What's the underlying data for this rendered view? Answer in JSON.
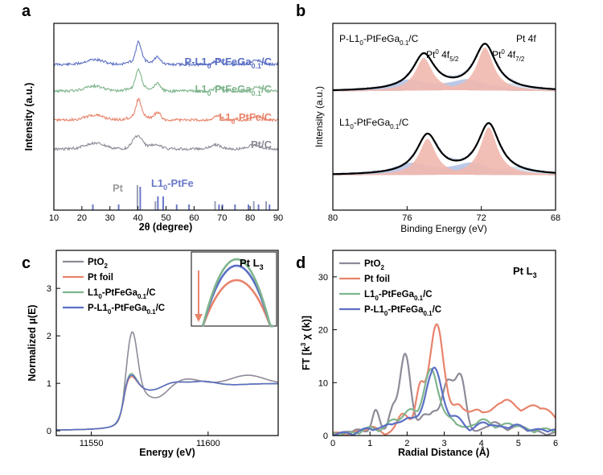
{
  "colors": {
    "blue": "#5b6fc4",
    "green": "#7fb58e",
    "red": "#e8836b",
    "gray": "#8f8a98",
    "xps_red_fill": "#f1b8ae",
    "xps_blue_fill": "#b7c4e4",
    "xps_lightblue_fill": "#cfe1f2"
  },
  "chart_data": [
    {
      "panel": "a",
      "type": "line",
      "xlabel": "2θ (degree)",
      "ylabel": "Intensity (a.u.)",
      "xlim": [
        10,
        90
      ],
      "xticks": [
        10,
        20,
        30,
        40,
        50,
        60,
        70,
        80,
        90
      ],
      "series": [
        {
          "name": "P-L1",
          "name_sub": "0",
          "name_mid": "-PtFeGa",
          "name_sub2": "0.1",
          "name_end": "/C",
          "color": "#5b6fc4"
        },
        {
          "name": "L1",
          "name_sub": "0",
          "name_mid": "-PtFeGa",
          "name_sub2": "0.1",
          "name_end": "/C",
          "color": "#7fb58e"
        },
        {
          "name": "L1",
          "name_sub": "0",
          "name_mid": "-PtFe/C",
          "name_sub2": "",
          "name_end": "",
          "color": "#e8836b"
        },
        {
          "name": "Pt/C",
          "name_sub": "",
          "name_mid": "",
          "name_sub2": "",
          "name_end": "",
          "color": "#8f8a98"
        }
      ],
      "peaks_deg": [
        24.5,
        40.2,
        47.0,
        68.5,
        82.5
      ],
      "reference": {
        "pt_label": "Pt",
        "pt_lines": [
          39.8,
          46.2,
          67.5,
          81.3,
          85.7
        ],
        "pt_color": "#9aa0b4",
        "pt_label_color": "#9b9b9b",
        "ptfe_label_a": "L1",
        "ptfe_label_sub": "0",
        "ptfe_label_b": "-PtFe",
        "ptfe_lines": [
          23.9,
          33.1,
          40.8,
          47.1,
          49.0,
          53.8,
          58.2,
          68.9,
          70.1,
          74.6,
          79.4,
          83.0,
          86.9
        ],
        "ptfe_color": "#6a78c8"
      }
    },
    {
      "panel": "b",
      "type": "line",
      "xlabel": "Binding Energy (eV)",
      "ylabel": "Intensity (a.u.)",
      "xlim": [
        80,
        68
      ],
      "xticks": [
        80,
        76,
        72,
        68
      ],
      "inner_title": "Pt 4f",
      "peak_labels": [
        {
          "a": "Pt",
          "sup": "0",
          "b": " 4f",
          "sub": "5/2"
        },
        {
          "a": "Pt",
          "sup": "0",
          "b": " 4f",
          "sub": "7/2"
        }
      ],
      "series": [
        {
          "label_a": "P-L1",
          "label_sub": "0",
          "label_b": "-PtFeGa",
          "label_sub2": "0.1",
          "label_c": "/C",
          "peaks_ev": [
            75.1,
            71.8
          ]
        },
        {
          "label_a": "L1",
          "label_sub": "0",
          "label_b": "-PtFeGa",
          "label_sub2": "0.1",
          "label_c": "/C",
          "peaks_ev": [
            74.9,
            71.6
          ]
        }
      ]
    },
    {
      "panel": "c",
      "type": "line",
      "xlabel": "Energy (eV)",
      "ylabel": "Normalized μ(E)",
      "xlim": [
        11535,
        11630
      ],
      "ylim": [
        -0.1,
        3.8
      ],
      "xticks": [
        11550,
        11600
      ],
      "yticks": [
        0,
        1,
        2,
        3
      ],
      "inset_title": "Pt L",
      "inset_title_sub": "3",
      "series": [
        {
          "a": "PtO",
          "sub": "2",
          "b": "",
          "sub2": "",
          "c": "",
          "color": "#8f8a98",
          "white_line": 2.2
        },
        {
          "a": "Pt foil",
          "sub": "",
          "b": "",
          "sub2": "",
          "c": "",
          "color": "#e8836b",
          "white_line": 1.28
        },
        {
          "a": "L1",
          "sub": "0",
          "b": "-PtFeGa",
          "sub2": "0.1",
          "c": "/C",
          "color": "#7fb58e",
          "white_line": 1.34
        },
        {
          "a": "P-L1",
          "sub": "0",
          "b": "-PtFeGa",
          "sub2": "0.1",
          "c": "/C",
          "color": "#5b6fc4",
          "white_line": 1.31
        }
      ]
    },
    {
      "panel": "d",
      "type": "line",
      "xlabel": "Radial Distance (Å)",
      "ylabel": "FT [k",
      "ylabel_sup": "3",
      "ylabel_end": " χ (k)]",
      "xlim": [
        0,
        6
      ],
      "ylim": [
        0,
        35
      ],
      "xticks": [
        0,
        1,
        2,
        3,
        4,
        5,
        6
      ],
      "yticks": [
        0,
        10,
        20,
        30
      ],
      "inner_title": "Pt L",
      "inner_title_sub": "3",
      "series": [
        {
          "a": "PtO",
          "sub": "2",
          "b": "",
          "sub2": "",
          "c": "",
          "color": "#8f8a98",
          "main_peak": [
            1.95,
            15.0
          ]
        },
        {
          "a": "Pt foil",
          "sub": "",
          "b": "",
          "sub2": "",
          "c": "",
          "color": "#e8836b",
          "main_peak": [
            2.8,
            20.5
          ]
        },
        {
          "a": "L1",
          "sub": "0",
          "b": "-PtFeGa",
          "sub2": "0.1",
          "c": "/C",
          "color": "#7fb58e",
          "main_peak": [
            2.65,
            12.0
          ]
        },
        {
          "a": "P-L1",
          "sub": "0",
          "b": "-PtFeGa",
          "sub2": "0.1",
          "c": "/C",
          "color": "#5b6fc4",
          "main_peak": [
            2.72,
            12.5
          ]
        }
      ]
    }
  ],
  "panel_labels": [
    "a",
    "b",
    "c",
    "d"
  ]
}
